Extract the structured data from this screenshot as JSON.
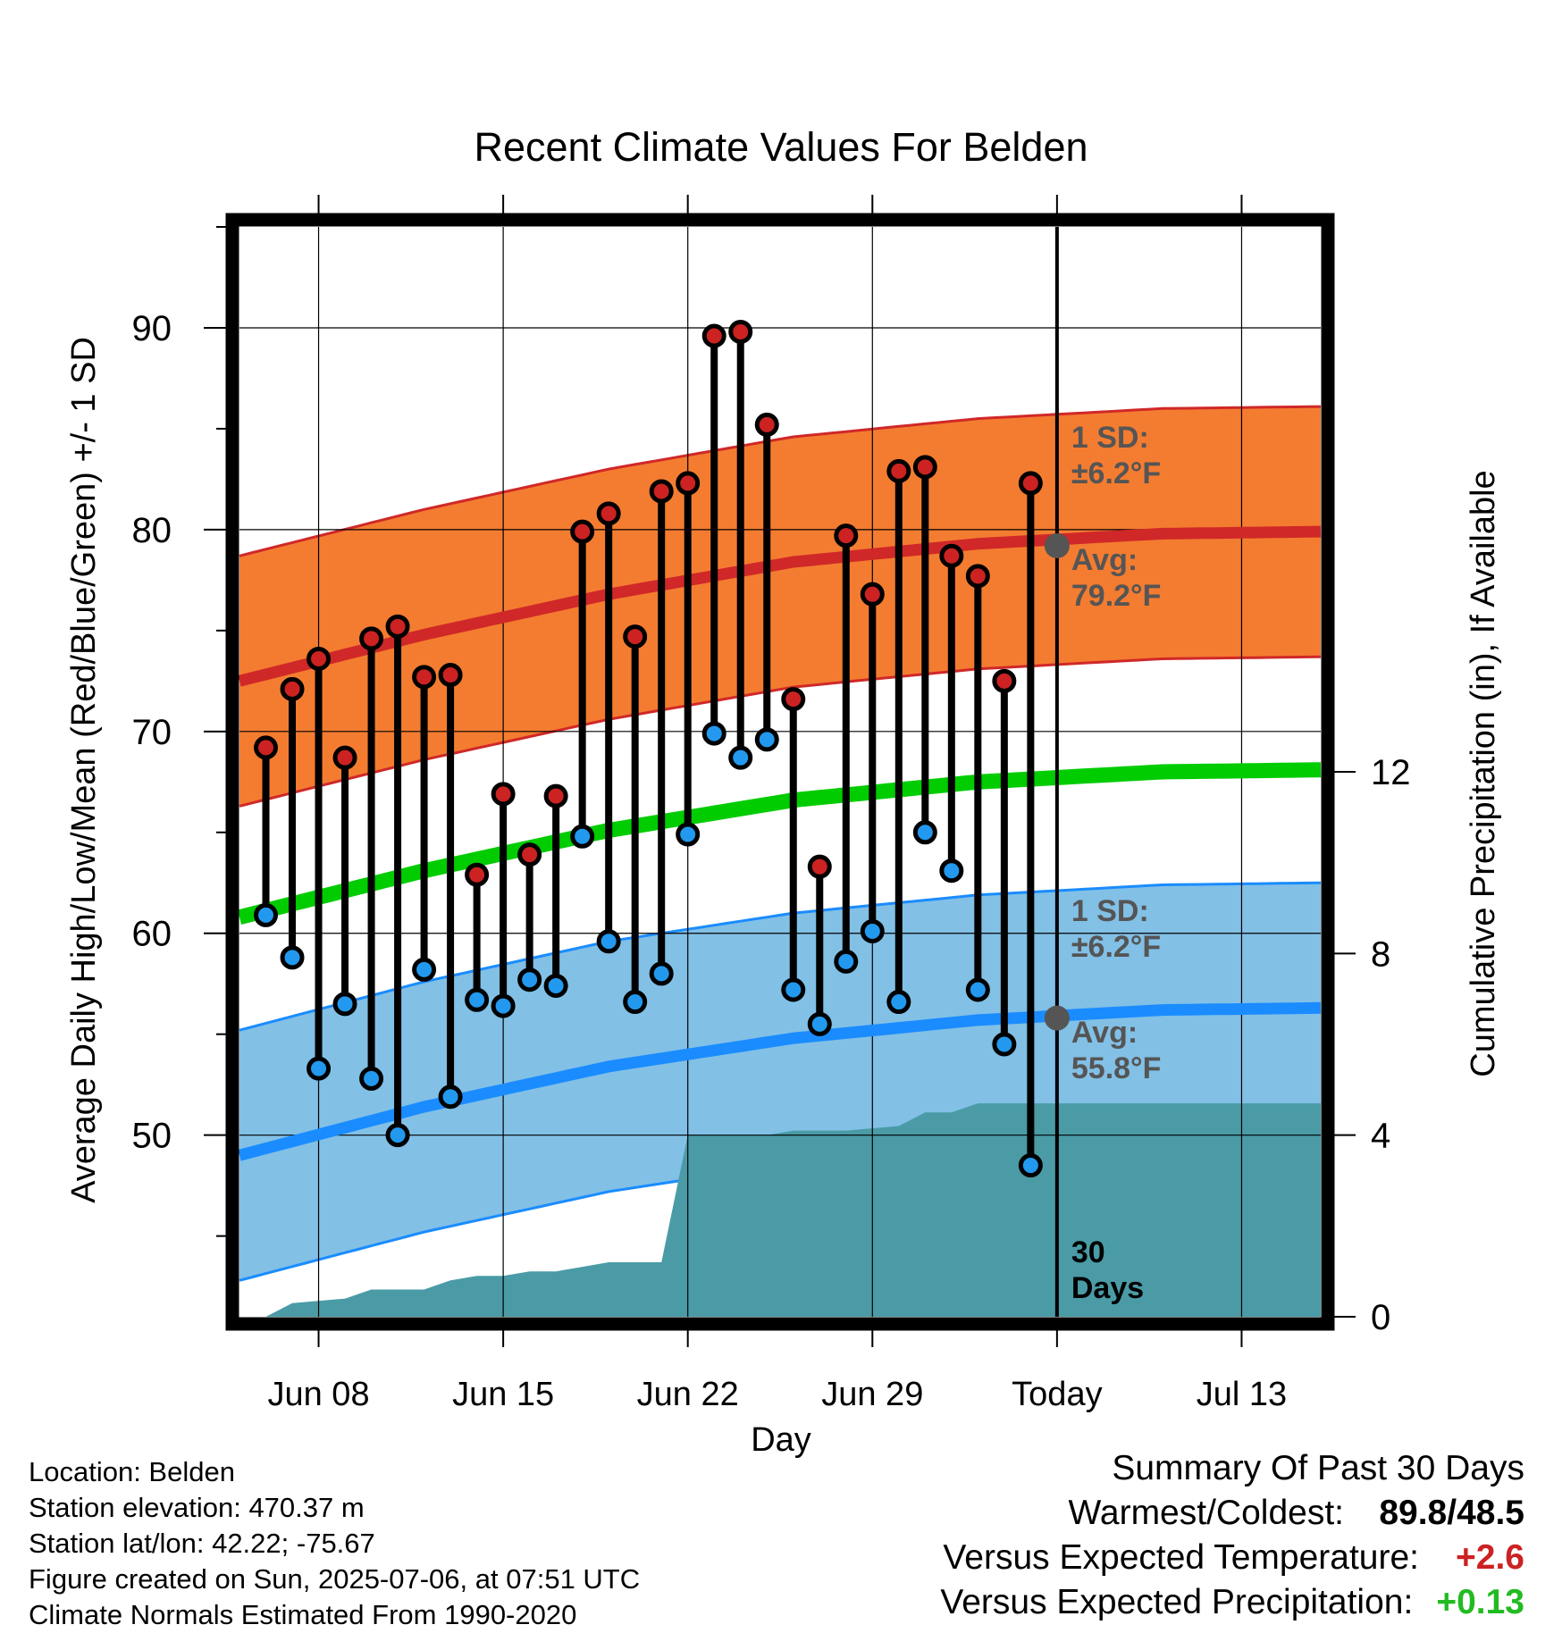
{
  "chart_data": {
    "type": "line",
    "title": "Recent Climate Values For Belden",
    "xlabel": "Day",
    "ylabel_left": "Average Daily High/Low/Mean (Red/Blue/Green) +/- 1 SD",
    "ylabel_right": "Cumulative Precipitation (in), If Available",
    "x_range": [
      "2025-06-05",
      "2025-07-16"
    ],
    "x_ticks": [
      {
        "date": "2025-06-08",
        "label": "Jun 08"
      },
      {
        "date": "2025-06-15",
        "label": "Jun 15"
      },
      {
        "date": "2025-06-22",
        "label": "Jun 22"
      },
      {
        "date": "2025-06-29",
        "label": "Jun 29"
      },
      {
        "date": "2025-07-06",
        "label": "Today"
      },
      {
        "date": "2025-07-13",
        "label": "Jul 13"
      }
    ],
    "ylim_left": [
      41,
      95
    ],
    "yticks_left": [
      50,
      60,
      70,
      80,
      90
    ],
    "ylim_right": [
      0,
      24
    ],
    "yticks_right": [
      0,
      4,
      8,
      12
    ],
    "grid": true,
    "today": "2025-07-06",
    "dates": [
      "2025-06-06",
      "2025-06-07",
      "2025-06-08",
      "2025-06-09",
      "2025-06-10",
      "2025-06-11",
      "2025-06-12",
      "2025-06-13",
      "2025-06-14",
      "2025-06-15",
      "2025-06-16",
      "2025-06-17",
      "2025-06-18",
      "2025-06-19",
      "2025-06-20",
      "2025-06-21",
      "2025-06-22",
      "2025-06-23",
      "2025-06-24",
      "2025-06-25",
      "2025-06-26",
      "2025-06-27",
      "2025-06-28",
      "2025-06-29",
      "2025-06-30",
      "2025-07-01",
      "2025-07-02",
      "2025-07-03",
      "2025-07-04",
      "2025-07-05"
    ],
    "daily_high": [
      69.2,
      72.1,
      73.6,
      68.7,
      74.6,
      75.2,
      72.7,
      72.8,
      62.9,
      66.9,
      63.9,
      66.8,
      79.9,
      80.8,
      74.7,
      81.9,
      82.3,
      89.6,
      89.8,
      85.2,
      71.6,
      63.3,
      79.7,
      76.8,
      82.9,
      83.1,
      78.7,
      77.7,
      72.5,
      82.3
    ],
    "daily_low": [
      60.9,
      58.8,
      53.3,
      56.5,
      52.8,
      50.0,
      58.2,
      51.9,
      56.7,
      56.4,
      57.7,
      57.4,
      64.8,
      59.6,
      56.6,
      58.0,
      64.9,
      69.9,
      68.7,
      69.6,
      57.2,
      55.5,
      58.6,
      60.1,
      56.6,
      65.0,
      63.1,
      57.2,
      54.5,
      48.5
    ],
    "normals": {
      "dates": [
        "2025-06-05",
        "2025-06-12",
        "2025-06-19",
        "2025-06-26",
        "2025-07-03",
        "2025-07-10",
        "2025-07-16"
      ],
      "high_avg": [
        72.5,
        74.8,
        76.8,
        78.4,
        79.3,
        79.8,
        79.9
      ],
      "low_avg": [
        49.0,
        51.4,
        53.4,
        54.8,
        55.7,
        56.2,
        56.3
      ],
      "mean_avg": [
        60.8,
        63.1,
        65.1,
        66.6,
        67.5,
        68.0,
        68.1
      ],
      "sd": 6.2
    },
    "cumulative_precip": {
      "dates": [
        "2025-06-06",
        "2025-06-07",
        "2025-06-09",
        "2025-06-10",
        "2025-06-12",
        "2025-06-13",
        "2025-06-14",
        "2025-06-15",
        "2025-06-16",
        "2025-06-17",
        "2025-06-19",
        "2025-06-21",
        "2025-06-22",
        "2025-06-23",
        "2025-06-24",
        "2025-06-25",
        "2025-06-26",
        "2025-06-27",
        "2025-06-28",
        "2025-06-30",
        "2025-07-01",
        "2025-07-02",
        "2025-07-03",
        "2025-07-04",
        "2025-07-16"
      ],
      "values": [
        0.0,
        0.3,
        0.4,
        0.6,
        0.6,
        0.8,
        0.9,
        0.9,
        1.0,
        1.0,
        1.2,
        1.2,
        4.0,
        4.0,
        4.0,
        4.0,
        4.1,
        4.1,
        4.1,
        4.2,
        4.5,
        4.5,
        4.7,
        4.7,
        4.7
      ]
    },
    "annotations": {
      "high_sd_label": [
        "1 SD:",
        "±6.2°F"
      ],
      "high_avg_label": [
        "Avg:",
        "79.2°F"
      ],
      "low_sd_label": [
        "1 SD:",
        "±6.2°F"
      ],
      "low_avg_label": [
        "Avg:",
        "55.8°F"
      ],
      "today_avg_high": 79.2,
      "today_avg_low": 55.8,
      "period_label": [
        "30",
        "Days"
      ]
    },
    "colors": {
      "high_band": "#f47c30",
      "high_line": "#d02828",
      "low_band": "#82c0e6",
      "low_line": "#1a8cff",
      "mean_line": "#00cc00",
      "precip": "#4a9ba6",
      "high_dot": "#cc2222",
      "low_dot": "#2299ee",
      "annotation": "#555555"
    }
  },
  "info": {
    "location": "Location: Belden",
    "elevation": "Station elevation: 470.37 m",
    "latlon": "Station lat/lon: 42.22; -75.67",
    "created": "Figure created on Sun, 2025-07-06, at 07:51 UTC",
    "normals": "Climate Normals Estimated From 1990-2020"
  },
  "summary": {
    "title": "Summary Of Past 30 Days",
    "warm_cold_label": "Warmest/Coldest:",
    "warm_value": "89.8",
    "slash": "/",
    "cold_value": "48.5",
    "temp_label": "Versus Expected Temperature:",
    "temp_value": "+2.6",
    "temp_color": "#cc2222",
    "precip_label": "Versus Expected Precipitation:",
    "precip_value": "+0.13",
    "precip_color": "#22bb22"
  }
}
